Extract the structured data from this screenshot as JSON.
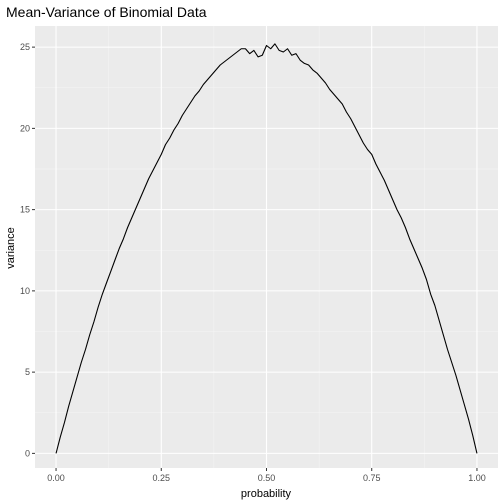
{
  "chart_data": {
    "type": "line",
    "title": "Mean-Variance of Binomial Data",
    "xlabel": "probability",
    "ylabel": "variance",
    "xlim": [
      -0.05,
      1.05
    ],
    "ylim": [
      -0.9,
      26.3
    ],
    "x_ticks": [
      0.0,
      0.25,
      0.5,
      0.75,
      1.0
    ],
    "x_tick_labels": [
      "0.00",
      "0.25",
      "0.50",
      "0.75",
      "1.00"
    ],
    "y_ticks": [
      0,
      5,
      10,
      15,
      20,
      25
    ],
    "y_tick_labels": [
      "0",
      "5",
      "10",
      "15",
      "20",
      "25"
    ],
    "grid": true,
    "panel_background": "#ebebeb",
    "grid_major_color": "#ffffff",
    "grid_minor_color": "#f5f5f5",
    "line_color": "#000000",
    "series": [
      {
        "x": [
          0.0,
          0.01,
          0.02,
          0.03,
          0.04,
          0.05,
          0.06,
          0.07,
          0.08,
          0.09,
          0.1,
          0.11,
          0.12,
          0.13,
          0.14,
          0.15,
          0.16,
          0.17,
          0.18,
          0.19,
          0.2,
          0.21,
          0.22,
          0.23,
          0.24,
          0.25,
          0.26,
          0.27,
          0.28,
          0.29,
          0.3,
          0.31,
          0.32,
          0.33,
          0.34,
          0.35,
          0.36,
          0.37,
          0.38,
          0.39,
          0.4,
          0.41,
          0.42,
          0.43,
          0.44,
          0.45,
          0.46,
          0.47,
          0.48,
          0.49,
          0.5,
          0.51,
          0.52,
          0.53,
          0.54,
          0.55,
          0.56,
          0.57,
          0.58,
          0.59,
          0.6,
          0.61,
          0.62,
          0.63,
          0.64,
          0.65,
          0.66,
          0.67,
          0.68,
          0.69,
          0.7,
          0.71,
          0.72,
          0.73,
          0.74,
          0.75,
          0.76,
          0.77,
          0.78,
          0.79,
          0.8,
          0.81,
          0.82,
          0.83,
          0.84,
          0.85,
          0.86,
          0.87,
          0.88,
          0.89,
          0.9,
          0.91,
          0.92,
          0.93,
          0.94,
          0.95,
          0.96,
          0.97,
          0.98,
          0.99,
          1.0
        ],
        "values": [
          0,
          1.0,
          1.9,
          2.9,
          3.8,
          4.7,
          5.6,
          6.4,
          7.3,
          8.1,
          9.0,
          9.8,
          10.5,
          11.2,
          11.9,
          12.6,
          13.2,
          13.9,
          14.5,
          15.1,
          15.7,
          16.3,
          16.9,
          17.4,
          17.9,
          18.4,
          19.0,
          19.4,
          19.9,
          20.3,
          20.8,
          21.2,
          21.6,
          22.0,
          22.3,
          22.7,
          23.0,
          23.3,
          23.6,
          23.9,
          24.1,
          24.3,
          24.5,
          24.7,
          24.9,
          24.9,
          24.6,
          24.8,
          24.4,
          24.5,
          25.1,
          24.9,
          25.2,
          24.8,
          24.7,
          24.9,
          24.5,
          24.6,
          24.2,
          24.0,
          23.9,
          23.6,
          23.4,
          23.1,
          22.8,
          22.4,
          22.1,
          21.8,
          21.5,
          21.0,
          20.6,
          20.1,
          19.6,
          19.1,
          18.7,
          18.4,
          17.8,
          17.3,
          16.8,
          16.2,
          15.6,
          15.0,
          14.5,
          13.9,
          13.2,
          12.6,
          12.0,
          11.4,
          10.7,
          9.8,
          9.1,
          8.2,
          7.3,
          6.4,
          5.6,
          4.8,
          3.9,
          3.0,
          2.1,
          1.1,
          0
        ]
      }
    ]
  }
}
